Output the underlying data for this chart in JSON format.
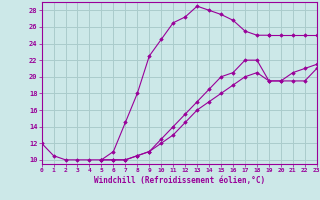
{
  "background_color": "#cce8e8",
  "grid_color": "#aacccc",
  "line_color": "#990099",
  "marker_color": "#990099",
  "xlabel": "Windchill (Refroidissement éolien,°C)",
  "xlim": [
    0,
    23
  ],
  "ylim": [
    9.5,
    29
  ],
  "yticks": [
    10,
    12,
    14,
    16,
    18,
    20,
    22,
    24,
    26,
    28
  ],
  "xticks": [
    0,
    1,
    2,
    3,
    4,
    5,
    6,
    7,
    8,
    9,
    10,
    11,
    12,
    13,
    14,
    15,
    16,
    17,
    18,
    19,
    20,
    21,
    22,
    23
  ],
  "series": [
    {
      "x": [
        0,
        1,
        2,
        3,
        4,
        5,
        6,
        7,
        8,
        9,
        10,
        11,
        12,
        13,
        14,
        15,
        16,
        17,
        18,
        19
      ],
      "y": [
        12,
        10.5,
        10,
        10,
        10,
        10,
        11,
        14.5,
        18,
        22.5,
        24.5,
        26.5,
        27.2,
        28.5,
        28,
        27.5,
        26.8,
        25.5,
        25,
        25
      ]
    },
    {
      "x": [
        5,
        6,
        7,
        8,
        9,
        10,
        11,
        12,
        13,
        14,
        15,
        16,
        17,
        18,
        19,
        20,
        21,
        22,
        23
      ],
      "y": [
        10,
        10,
        10,
        10.5,
        11,
        12.5,
        14,
        15.5,
        17,
        18.5,
        20,
        20.5,
        22,
        22,
        19.5,
        19.5,
        19.5,
        19.5,
        21
      ]
    },
    {
      "x": [
        5,
        6,
        7,
        8,
        9,
        10,
        11,
        12,
        13,
        14,
        15,
        16,
        17,
        18,
        19,
        20,
        21,
        22,
        23
      ],
      "y": [
        10,
        10,
        10,
        10.5,
        11,
        12,
        13,
        14.5,
        16,
        17,
        18,
        19,
        20,
        20.5,
        19.5,
        19.5,
        20.5,
        21,
        21.5
      ]
    },
    {
      "x": [
        19,
        20,
        21,
        22,
        23
      ],
      "y": [
        25,
        25,
        25,
        25,
        25
      ]
    }
  ]
}
